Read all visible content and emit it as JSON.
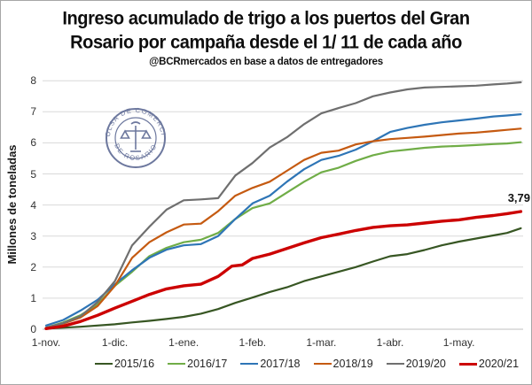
{
  "title": {
    "line1": "Ingreso acumulado de trigo a los puertos del Gran",
    "line2": "Rosario por campaña desde el 1/ 11 de cada año",
    "subtitle": "@BCRmercados en base a datos de entregadores"
  },
  "watermark": {
    "text_top": "BOLSA DE COMERCIO",
    "text_bottom": "DE ROSARIO",
    "color": "#54618e"
  },
  "annotation_label": "3,79",
  "chart_data": {
    "type": "line",
    "title": "Ingreso acumulado de trigo a los puertos del Gran Rosario por campaña desde el 1/ 11 de cada año",
    "subtitle": "@BCRmercados en base a datos de entregadores",
    "ylabel": "Millones de toneladas",
    "ylim": [
      0,
      8
    ],
    "yticks": [
      0,
      1,
      2,
      3,
      4,
      5,
      6,
      7,
      8
    ],
    "x_unit": "months since Nov 1",
    "xticks": [
      0,
      1,
      2,
      3,
      4,
      5,
      6
    ],
    "xtick_labels": [
      "1-nov.",
      "1-dic.",
      "1-ene.",
      "1-feb.",
      "1-mar.",
      "1-abr.",
      "1-may."
    ],
    "grid": "horizontal",
    "legend_position": "bottom",
    "annotation": {
      "text": "3,79",
      "series": "2020/21",
      "value": 3.79
    },
    "series": [
      {
        "name": "2015/16",
        "color": "#375623",
        "width": 2.2,
        "points": [
          [
            0,
            0.02
          ],
          [
            0.5,
            0.08
          ],
          [
            1,
            0.16
          ],
          [
            1.25,
            0.22
          ],
          [
            1.5,
            0.27
          ],
          [
            1.75,
            0.33
          ],
          [
            2,
            0.4
          ],
          [
            2.25,
            0.5
          ],
          [
            2.5,
            0.65
          ],
          [
            2.75,
            0.85
          ],
          [
            3,
            1.02
          ],
          [
            3.25,
            1.2
          ],
          [
            3.5,
            1.35
          ],
          [
            3.75,
            1.55
          ],
          [
            4,
            1.7
          ],
          [
            4.25,
            1.85
          ],
          [
            4.5,
            2.0
          ],
          [
            4.75,
            2.18
          ],
          [
            5,
            2.35
          ],
          [
            5.25,
            2.42
          ],
          [
            5.5,
            2.55
          ],
          [
            5.75,
            2.7
          ],
          [
            6,
            2.82
          ],
          [
            6.25,
            2.92
          ],
          [
            6.5,
            3.02
          ],
          [
            6.7,
            3.1
          ],
          [
            6.9,
            3.25
          ]
        ]
      },
      {
        "name": "2016/17",
        "color": "#70AD47",
        "width": 2.2,
        "points": [
          [
            0,
            0.05
          ],
          [
            0.25,
            0.22
          ],
          [
            0.5,
            0.45
          ],
          [
            0.75,
            0.8
          ],
          [
            1,
            1.4
          ],
          [
            1.25,
            1.85
          ],
          [
            1.5,
            2.35
          ],
          [
            1.75,
            2.62
          ],
          [
            2,
            2.8
          ],
          [
            2.25,
            2.88
          ],
          [
            2.5,
            3.1
          ],
          [
            2.75,
            3.55
          ],
          [
            3,
            3.9
          ],
          [
            3.25,
            4.05
          ],
          [
            3.5,
            4.4
          ],
          [
            3.75,
            4.75
          ],
          [
            4,
            5.05
          ],
          [
            4.25,
            5.2
          ],
          [
            4.5,
            5.42
          ],
          [
            4.75,
            5.6
          ],
          [
            5,
            5.72
          ],
          [
            5.25,
            5.78
          ],
          [
            5.5,
            5.84
          ],
          [
            5.75,
            5.88
          ],
          [
            6,
            5.9
          ],
          [
            6.25,
            5.93
          ],
          [
            6.5,
            5.96
          ],
          [
            6.7,
            5.98
          ],
          [
            6.9,
            6.02
          ]
        ]
      },
      {
        "name": "2017/18",
        "color": "#2E75B6",
        "width": 2.2,
        "points": [
          [
            0,
            0.12
          ],
          [
            0.25,
            0.3
          ],
          [
            0.5,
            0.6
          ],
          [
            0.75,
            0.95
          ],
          [
            1,
            1.45
          ],
          [
            1.25,
            1.9
          ],
          [
            1.5,
            2.3
          ],
          [
            1.75,
            2.56
          ],
          [
            2,
            2.7
          ],
          [
            2.25,
            2.74
          ],
          [
            2.5,
            3.0
          ],
          [
            2.75,
            3.55
          ],
          [
            3,
            4.05
          ],
          [
            3.25,
            4.3
          ],
          [
            3.5,
            4.75
          ],
          [
            3.75,
            5.15
          ],
          [
            4,
            5.45
          ],
          [
            4.25,
            5.58
          ],
          [
            4.5,
            5.78
          ],
          [
            4.75,
            6.05
          ],
          [
            5,
            6.35
          ],
          [
            5.25,
            6.48
          ],
          [
            5.5,
            6.58
          ],
          [
            5.75,
            6.66
          ],
          [
            6,
            6.72
          ],
          [
            6.25,
            6.78
          ],
          [
            6.5,
            6.85
          ],
          [
            6.7,
            6.88
          ],
          [
            6.9,
            6.92
          ]
        ]
      },
      {
        "name": "2018/19",
        "color": "#C55A11",
        "width": 2.2,
        "points": [
          [
            0,
            0.03
          ],
          [
            0.25,
            0.18
          ],
          [
            0.5,
            0.38
          ],
          [
            0.75,
            0.75
          ],
          [
            1,
            1.4
          ],
          [
            1.25,
            2.3
          ],
          [
            1.5,
            2.8
          ],
          [
            1.75,
            3.12
          ],
          [
            2,
            3.37
          ],
          [
            2.25,
            3.4
          ],
          [
            2.5,
            3.8
          ],
          [
            2.75,
            4.3
          ],
          [
            3,
            4.55
          ],
          [
            3.25,
            4.75
          ],
          [
            3.5,
            5.1
          ],
          [
            3.75,
            5.45
          ],
          [
            4,
            5.68
          ],
          [
            4.25,
            5.75
          ],
          [
            4.5,
            5.95
          ],
          [
            4.75,
            6.05
          ],
          [
            5,
            6.12
          ],
          [
            5.25,
            6.16
          ],
          [
            5.5,
            6.2
          ],
          [
            5.75,
            6.25
          ],
          [
            6,
            6.3
          ],
          [
            6.25,
            6.33
          ],
          [
            6.5,
            6.38
          ],
          [
            6.7,
            6.42
          ],
          [
            6.9,
            6.46
          ]
        ]
      },
      {
        "name": "2019/20",
        "color": "#6F6F6F",
        "width": 2.2,
        "points": [
          [
            0,
            0.05
          ],
          [
            0.25,
            0.2
          ],
          [
            0.5,
            0.42
          ],
          [
            0.75,
            0.88
          ],
          [
            1,
            1.55
          ],
          [
            1.25,
            2.7
          ],
          [
            1.5,
            3.3
          ],
          [
            1.75,
            3.85
          ],
          [
            2,
            4.15
          ],
          [
            2.25,
            4.18
          ],
          [
            2.5,
            4.22
          ],
          [
            2.75,
            4.95
          ],
          [
            3,
            5.35
          ],
          [
            3.25,
            5.85
          ],
          [
            3.5,
            6.18
          ],
          [
            3.75,
            6.6
          ],
          [
            4,
            6.95
          ],
          [
            4.25,
            7.12
          ],
          [
            4.5,
            7.28
          ],
          [
            4.75,
            7.5
          ],
          [
            5,
            7.62
          ],
          [
            5.25,
            7.72
          ],
          [
            5.5,
            7.78
          ],
          [
            5.75,
            7.8
          ],
          [
            6,
            7.82
          ],
          [
            6.25,
            7.84
          ],
          [
            6.5,
            7.88
          ],
          [
            6.7,
            7.91
          ],
          [
            6.9,
            7.95
          ]
        ]
      },
      {
        "name": "2020/21",
        "color": "#CC0000",
        "width": 3.4,
        "points": [
          [
            0,
            0.02
          ],
          [
            0.25,
            0.1
          ],
          [
            0.5,
            0.25
          ],
          [
            0.75,
            0.45
          ],
          [
            1,
            0.68
          ],
          [
            1.25,
            0.9
          ],
          [
            1.5,
            1.12
          ],
          [
            1.75,
            1.3
          ],
          [
            2,
            1.4
          ],
          [
            2.25,
            1.45
          ],
          [
            2.5,
            1.7
          ],
          [
            2.7,
            2.03
          ],
          [
            2.85,
            2.07
          ],
          [
            3,
            2.28
          ],
          [
            3.25,
            2.42
          ],
          [
            3.5,
            2.6
          ],
          [
            3.75,
            2.78
          ],
          [
            4,
            2.95
          ],
          [
            4.25,
            3.06
          ],
          [
            4.5,
            3.18
          ],
          [
            4.75,
            3.28
          ],
          [
            5,
            3.33
          ],
          [
            5.25,
            3.36
          ],
          [
            5.5,
            3.42
          ],
          [
            5.75,
            3.48
          ],
          [
            6,
            3.52
          ],
          [
            6.25,
            3.6
          ],
          [
            6.5,
            3.66
          ],
          [
            6.7,
            3.72
          ],
          [
            6.9,
            3.79
          ]
        ]
      }
    ]
  }
}
